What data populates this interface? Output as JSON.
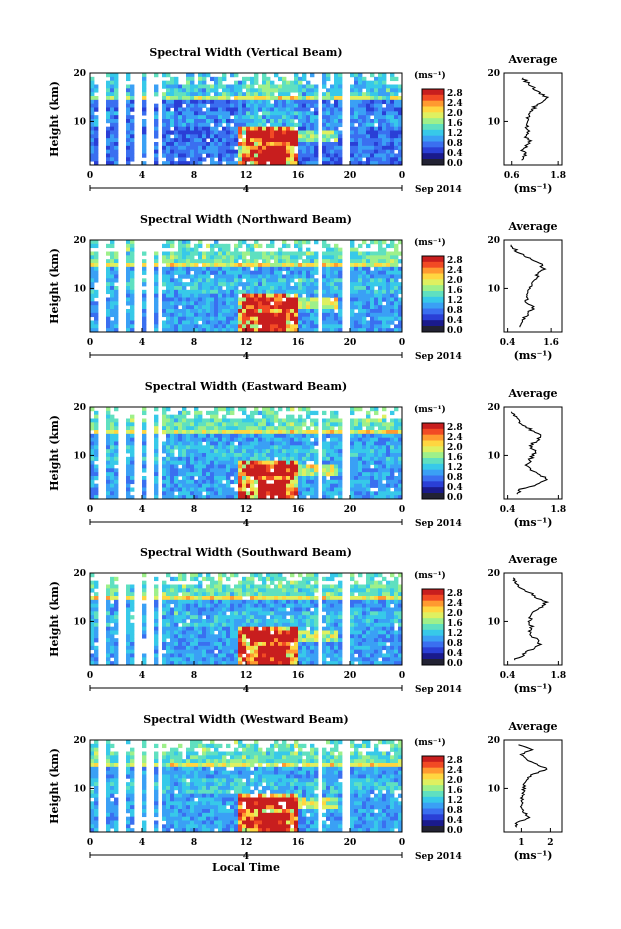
{
  "colors": {
    "palette": [
      "#1a1a8c",
      "#2a3fd6",
      "#3a6ff0",
      "#3aa0f5",
      "#37c9e9",
      "#5fe0c0",
      "#9ef08a",
      "#dff060",
      "#ffd640",
      "#ff9a30",
      "#f24a24",
      "#c81e1e"
    ],
    "bar_bottom": "#222233"
  },
  "chart_data": [
    {
      "type": "heatmap",
      "title": "Spectral Width (Vertical Beam)",
      "ylabel": "Height (km)",
      "x_ticks": [
        "0",
        "4",
        "8",
        "12",
        "16",
        "20",
        "0"
      ],
      "y_ticks": [
        "20",
        "10"
      ],
      "xlim": [
        0,
        24
      ],
      "ylim": [
        1,
        20
      ],
      "date_label": "4",
      "month_label": "Sep 2014",
      "colorbar_unit": "(ms⁻¹)",
      "colorbar_ticks": [
        "2.8",
        "2.4",
        "2.0",
        "1.6",
        "1.2",
        "0.8",
        "0.4",
        "0.0"
      ],
      "profile": {
        "title": "Average",
        "xlabel": "(ms⁻¹)",
        "x_ticks": [
          "0.6",
          "1.8"
        ],
        "y_ticks": [
          "20",
          "10"
        ],
        "xlim": [
          0.4,
          1.9
        ],
        "heights": [
          2,
          3,
          4,
          5,
          6,
          7,
          8,
          9,
          10,
          11,
          12,
          13,
          14,
          15,
          16,
          17,
          18,
          19
        ],
        "values": [
          0.85,
          0.95,
          0.9,
          1.0,
          1.05,
          0.95,
          1.05,
          0.98,
          0.95,
          1.05,
          1.1,
          1.2,
          1.35,
          1.5,
          1.3,
          1.15,
          1.0,
          0.9
        ]
      }
    },
    {
      "type": "heatmap",
      "title": "Spectral Width (Northward Beam)",
      "ylabel": "Height (km)",
      "x_ticks": [
        "0",
        "4",
        "8",
        "12",
        "16",
        "20",
        "0"
      ],
      "y_ticks": [
        "20",
        "10"
      ],
      "xlim": [
        0,
        24
      ],
      "ylim": [
        1,
        20
      ],
      "date_label": "4",
      "month_label": "Sep 2014",
      "colorbar_unit": "(ms⁻¹)",
      "colorbar_ticks": [
        "2.8",
        "2.4",
        "2.0",
        "1.6",
        "1.2",
        "0.8",
        "0.4",
        "0.0"
      ],
      "profile": {
        "title": "Average",
        "xlabel": "(ms⁻¹)",
        "x_ticks": [
          "0.4",
          "1.6"
        ],
        "y_ticks": [
          "20",
          "10"
        ],
        "xlim": [
          0.3,
          1.9
        ],
        "heights": [
          2,
          3,
          4,
          5,
          6,
          7,
          8,
          9,
          10,
          11,
          12,
          13,
          14,
          15,
          16,
          17,
          18,
          19
        ],
        "values": [
          0.75,
          0.8,
          0.85,
          1.0,
          1.1,
          0.95,
          0.9,
          0.95,
          1.0,
          1.05,
          1.15,
          1.25,
          1.4,
          1.3,
          1.1,
          0.8,
          0.6,
          0.5
        ]
      }
    },
    {
      "type": "heatmap",
      "title": "Spectral Width (Eastward Beam)",
      "ylabel": "Height (km)",
      "x_ticks": [
        "0",
        "4",
        "8",
        "12",
        "16",
        "20",
        "0"
      ],
      "y_ticks": [
        "20",
        "10"
      ],
      "xlim": [
        0,
        24
      ],
      "ylim": [
        1,
        20
      ],
      "date_label": "4",
      "month_label": "Sep 2014",
      "colorbar_unit": "(ms⁻¹)",
      "colorbar_ticks": [
        "2.8",
        "2.4",
        "2.0",
        "1.6",
        "1.2",
        "0.8",
        "0.4",
        "0.0"
      ],
      "profile": {
        "title": "Average",
        "xlabel": "(ms⁻¹)",
        "x_ticks": [
          "0.4",
          "1.8"
        ],
        "y_ticks": [
          "20",
          "10"
        ],
        "xlim": [
          0.3,
          1.9
        ],
        "heights": [
          2,
          3,
          4,
          5,
          6,
          7,
          8,
          9,
          10,
          11,
          12,
          13,
          14,
          15,
          16,
          17,
          18,
          19
        ],
        "values": [
          0.7,
          0.75,
          1.2,
          1.5,
          1.3,
          1.0,
          0.95,
          1.0,
          1.1,
          1.15,
          1.0,
          1.2,
          1.35,
          1.1,
          0.9,
          0.7,
          0.6,
          0.5
        ]
      }
    },
    {
      "type": "heatmap",
      "title": "Spectral Width (Southward Beam)",
      "ylabel": "Height (km)",
      "x_ticks": [
        "0",
        "4",
        "8",
        "12",
        "16",
        "20",
        "0"
      ],
      "y_ticks": [
        "20",
        "10"
      ],
      "xlim": [
        0,
        24
      ],
      "ylim": [
        1,
        20
      ],
      "date_label": "4",
      "month_label": "Sep 2014",
      "colorbar_unit": "(ms⁻¹)",
      "colorbar_ticks": [
        "2.8",
        "2.4",
        "2.0",
        "1.6",
        "1.2",
        "0.8",
        "0.4",
        "0.0"
      ],
      "profile": {
        "title": "Average",
        "xlabel": "(ms⁻¹)",
        "x_ticks": [
          "0.4",
          "1.8"
        ],
        "y_ticks": [
          "20",
          "10"
        ],
        "xlim": [
          0.3,
          1.9
        ],
        "heights": [
          2,
          3,
          4,
          5,
          6,
          7,
          8,
          9,
          10,
          11,
          12,
          13,
          14,
          15,
          16,
          17,
          18,
          19
        ],
        "values": [
          0.6,
          0.8,
          1.0,
          1.25,
          1.3,
          1.05,
          1.0,
          1.05,
          1.0,
          1.05,
          1.15,
          1.35,
          1.45,
          1.2,
          1.0,
          0.75,
          0.6,
          0.55
        ]
      }
    },
    {
      "type": "heatmap",
      "title": "Spectral Width (Westward Beam)",
      "ylabel": "Height (km)",
      "xlabel": "Local Time",
      "x_ticks": [
        "0",
        "4",
        "8",
        "12",
        "16",
        "20",
        "0"
      ],
      "y_ticks": [
        "20",
        "10"
      ],
      "xlim": [
        0,
        24
      ],
      "ylim": [
        1,
        20
      ],
      "date_label": "4",
      "month_label": "Sep 2014",
      "colorbar_unit": "(ms⁻¹)",
      "colorbar_ticks": [
        "2.8",
        "2.4",
        "2.0",
        "1.6",
        "1.2",
        "0.8",
        "0.4",
        "0.0"
      ],
      "profile": {
        "title": "Average",
        "xlabel": "(ms⁻¹)",
        "x_ticks": [
          "1",
          "2"
        ],
        "y_ticks": [
          "20",
          "10"
        ],
        "xlim": [
          0.4,
          2.4
        ],
        "heights": [
          2,
          3,
          4,
          5,
          6,
          7,
          8,
          9,
          10,
          11,
          12,
          13,
          14,
          15,
          16,
          17,
          18,
          19
        ],
        "values": [
          0.8,
          0.85,
          1.3,
          1.1,
          1.0,
          1.05,
          1.0,
          1.05,
          1.1,
          1.05,
          1.2,
          1.4,
          1.9,
          1.5,
          1.2,
          1.0,
          1.35,
          0.9
        ]
      }
    }
  ]
}
